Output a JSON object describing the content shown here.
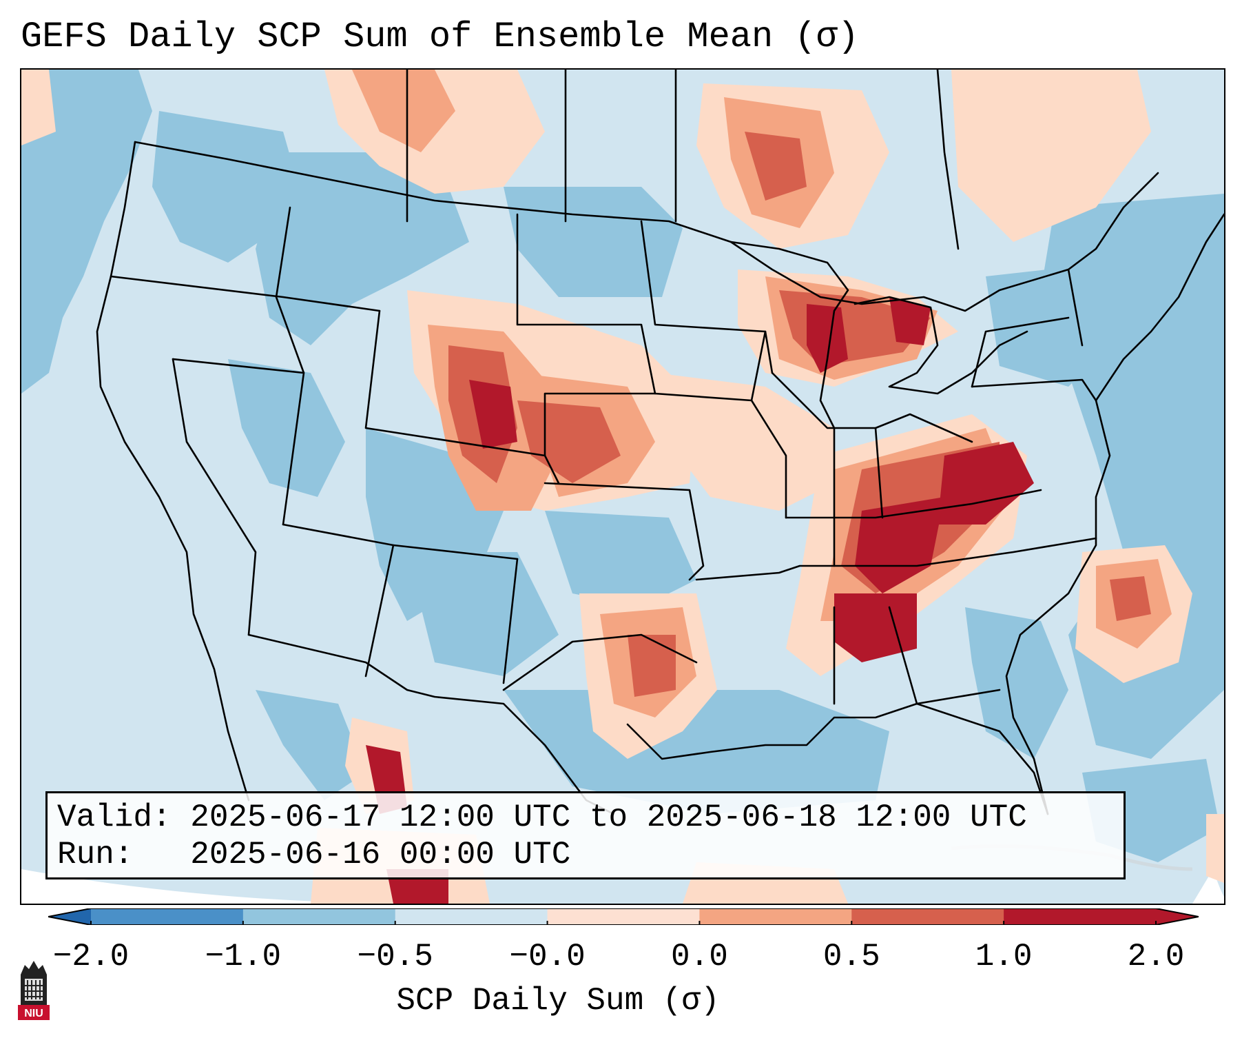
{
  "title": "GEFS Daily SCP Sum of Ensemble Mean (σ)",
  "info": {
    "valid_line": "Valid: 2025-06-17 12:00 UTC to 2025-06-18 12:00 UTC",
    "run_line": "Run:   2025-06-16 00:00 UTC"
  },
  "colorbar": {
    "label": "SCP Daily Sum (σ)",
    "ticks": [
      "−2.0",
      "−1.0",
      "−0.5",
      "−0.0",
      "0.0",
      "0.5",
      "1.0",
      "2.0"
    ],
    "colors": [
      "#4a90c8",
      "#92c5de",
      "#d1e5f0",
      "#fde0d2",
      "#f4a582",
      "#d6604d",
      "#b2182b"
    ]
  },
  "map": {
    "region": "Contiguous United States",
    "background_color": "#d1e5f0",
    "outside_domain_color": "#ffffff",
    "highlights": [
      "Colorado–Nebraska–Kansas",
      "Michigan and Great Lakes",
      "Ohio Valley to Tennessee and Alabama",
      "Virginia and West Virginia",
      "North Texas",
      "Atlantic offshore east of the Carolinas",
      "Northern Mexico"
    ]
  },
  "logo": {
    "text": "NIU"
  }
}
